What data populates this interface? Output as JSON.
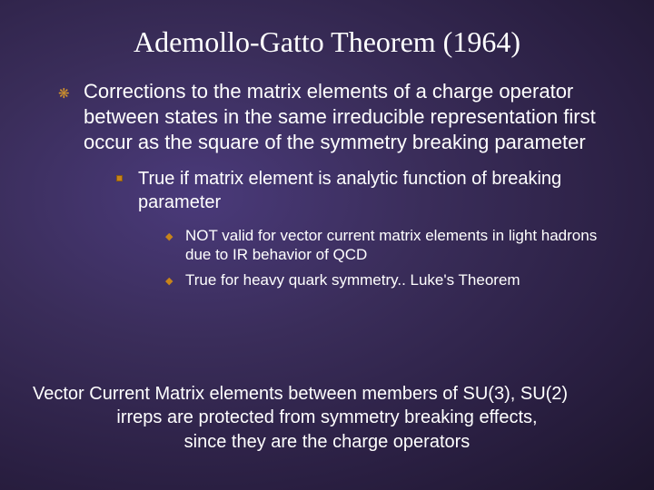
{
  "colors": {
    "bullet_orange": "#d4942a",
    "bullet_square": "#c8841a",
    "text": "#ffffff",
    "bg_inner": "#4a3a7a",
    "bg_outer": "#0d0a18"
  },
  "title": "Ademollo-Gatto Theorem (1964)",
  "level1": {
    "text": "Corrections to the matrix elements of a charge operator between states in the same irreducible representation first occur as the square of the symmetry breaking parameter"
  },
  "level2": {
    "text": "True if matrix element is analytic function of breaking parameter"
  },
  "level3a": {
    "text": "NOT valid for vector current matrix elements in light hadrons due to IR behavior of QCD"
  },
  "level3b": {
    "text": "True for heavy quark symmetry.. Luke's Theorem"
  },
  "footer": {
    "line1": "Vector Current Matrix elements between members of SU(3), SU(2)",
    "line2": "irreps are protected from symmetry breaking effects,",
    "line3": "since they are the charge operators"
  }
}
